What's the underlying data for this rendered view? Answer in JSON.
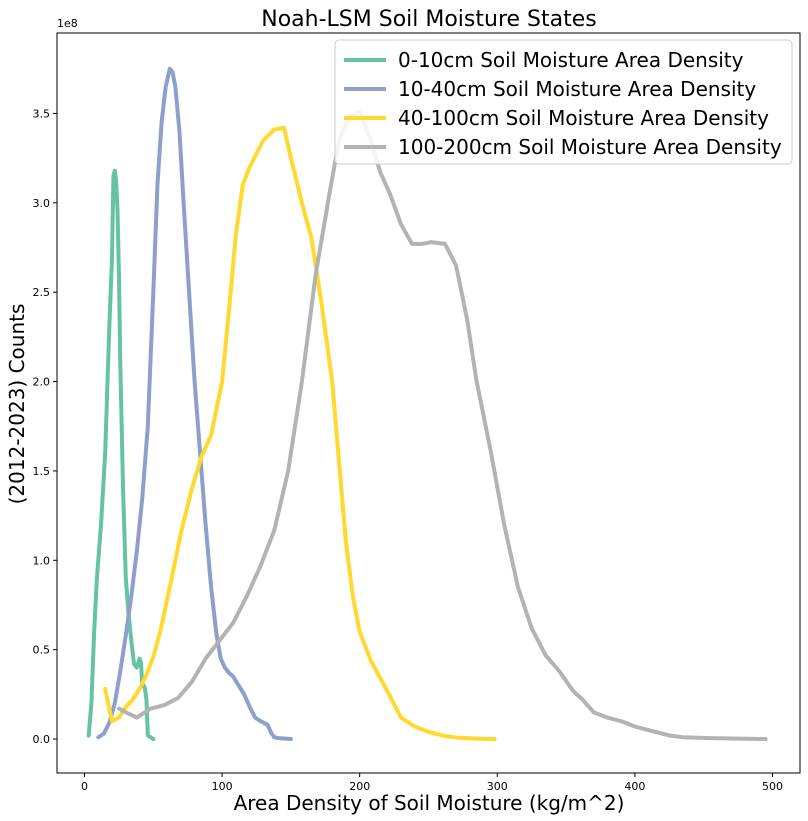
{
  "chart_data": {
    "type": "line",
    "title": "Noah-LSM Soil Moisture States",
    "xlabel": "Area Density of Soil Moisture (kg/m^2)",
    "ylabel": "(2012-2023) Counts",
    "y_multiplier_label": "1e8",
    "xlim": [
      -20,
      520
    ],
    "ylim": [
      -0.19,
      3.95
    ],
    "x_ticks": [
      0,
      100,
      200,
      300,
      400,
      500
    ],
    "x_tick_labels": [
      "0",
      "100",
      "200",
      "300",
      "400",
      "500"
    ],
    "y_ticks": [
      0,
      0.5,
      1.0,
      1.5,
      2.0,
      2.5,
      3.0,
      3.5
    ],
    "y_tick_labels": [
      "0.0",
      "0.5",
      "1.0",
      "1.5",
      "2.0",
      "2.5",
      "3.0",
      "3.5"
    ],
    "grid": false,
    "legend_position": "top-right",
    "series": [
      {
        "name": "0-10cm Soil Moisture Area Density",
        "color": "#66c2a5",
        "x": [
          3,
          5,
          7,
          9,
          12,
          15,
          18,
          20,
          21,
          22,
          23,
          24,
          25,
          26,
          28,
          30,
          32,
          34,
          36,
          38,
          40,
          41,
          42,
          43,
          44,
          45,
          46,
          48,
          50
        ],
        "y": [
          0.02,
          0.2,
          0.6,
          0.9,
          1.2,
          1.6,
          2.3,
          2.7,
          3.15,
          3.18,
          3.12,
          2.95,
          2.6,
          2.1,
          1.4,
          0.9,
          0.7,
          0.55,
          0.42,
          0.4,
          0.45,
          0.43,
          0.3,
          0.3,
          0.28,
          0.22,
          0.02,
          0.01,
          0.0
        ]
      },
      {
        "name": "10-40cm Soil Moisture Area Density",
        "color": "#8da0cb",
        "x": [
          10,
          14,
          18,
          22,
          26,
          30,
          34,
          38,
          42,
          46,
          50,
          53,
          56,
          59,
          62,
          64,
          66,
          69,
          72,
          76,
          80,
          84,
          88,
          92,
          96,
          99,
          102,
          105,
          108,
          112,
          116,
          120,
          124,
          128,
          133,
          136,
          138,
          141,
          146,
          150
        ],
        "y": [
          0.01,
          0.03,
          0.09,
          0.2,
          0.38,
          0.58,
          0.8,
          1.05,
          1.35,
          1.75,
          2.5,
          3.1,
          3.45,
          3.65,
          3.75,
          3.73,
          3.65,
          3.4,
          3.0,
          2.5,
          2.0,
          1.6,
          1.2,
          0.85,
          0.58,
          0.45,
          0.4,
          0.37,
          0.35,
          0.3,
          0.25,
          0.18,
          0.12,
          0.1,
          0.08,
          0.03,
          0.01,
          0.005,
          0.002,
          0.0
        ]
      },
      {
        "name": "40-100cm Soil Moisture Area Density",
        "color": "#ffd92f",
        "x": [
          15,
          20,
          25,
          30,
          35,
          40,
          45,
          50,
          55,
          62,
          70,
          78,
          85,
          92,
          100,
          105,
          110,
          115,
          120,
          130,
          138,
          145,
          150,
          158,
          165,
          172,
          180,
          185,
          190,
          195,
          200,
          208,
          215,
          222,
          230,
          240,
          250,
          260,
          270,
          285,
          298
        ],
        "y": [
          0.28,
          0.1,
          0.12,
          0.18,
          0.22,
          0.28,
          0.36,
          0.46,
          0.6,
          0.85,
          1.15,
          1.4,
          1.58,
          1.7,
          2.0,
          2.4,
          2.82,
          3.1,
          3.2,
          3.35,
          3.41,
          3.42,
          3.25,
          3.0,
          2.8,
          2.45,
          2.0,
          1.55,
          1.1,
          0.8,
          0.6,
          0.44,
          0.34,
          0.24,
          0.12,
          0.07,
          0.04,
          0.02,
          0.008,
          0.002,
          0.0
        ]
      },
      {
        "name": "100-200cm Soil Moisture Area Density",
        "color": "#b3b3b3",
        "x": [
          25,
          30,
          38,
          48,
          58,
          68,
          78,
          88,
          98,
          108,
          118,
          128,
          138,
          148,
          158,
          168,
          178,
          185,
          192,
          200,
          208,
          215,
          222,
          230,
          238,
          245,
          252,
          262,
          270,
          278,
          285,
          295,
          305,
          315,
          325,
          335,
          345,
          355,
          362,
          370,
          380,
          390,
          400,
          415,
          425,
          435,
          455,
          475,
          495
        ],
        "y": [
          0.17,
          0.15,
          0.12,
          0.17,
          0.19,
          0.23,
          0.32,
          0.45,
          0.55,
          0.65,
          0.8,
          0.97,
          1.17,
          1.5,
          2.0,
          2.6,
          3.05,
          3.35,
          3.48,
          3.51,
          3.35,
          3.17,
          3.05,
          2.88,
          2.77,
          2.77,
          2.78,
          2.77,
          2.65,
          2.35,
          2.0,
          1.62,
          1.2,
          0.85,
          0.62,
          0.47,
          0.38,
          0.27,
          0.22,
          0.15,
          0.12,
          0.1,
          0.07,
          0.04,
          0.02,
          0.01,
          0.005,
          0.002,
          0.0
        ]
      }
    ]
  }
}
